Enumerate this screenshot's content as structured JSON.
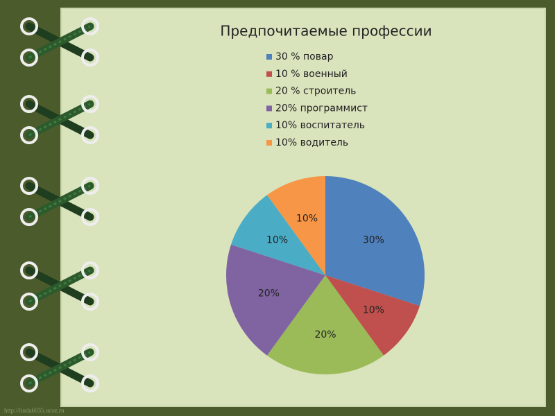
{
  "chart_data": {
    "type": "pie",
    "title": "Предпочитаемые профессии",
    "categories": [
      "30 % повар",
      "10 % военный",
      "20 % строитель",
      "20%  программист",
      "10%  воспитатель",
      "10%  водитель"
    ],
    "values": [
      30,
      10,
      20,
      20,
      10,
      10
    ],
    "value_labels": [
      "30%",
      "10%",
      "20%",
      "20%",
      "10%",
      "10%"
    ],
    "colors": [
      "#4f81bd",
      "#c0504d",
      "#9bbb59",
      "#8064a2",
      "#4bacc6",
      "#f79646"
    ]
  },
  "watermark": "http://linda6035.ucoz.ru"
}
